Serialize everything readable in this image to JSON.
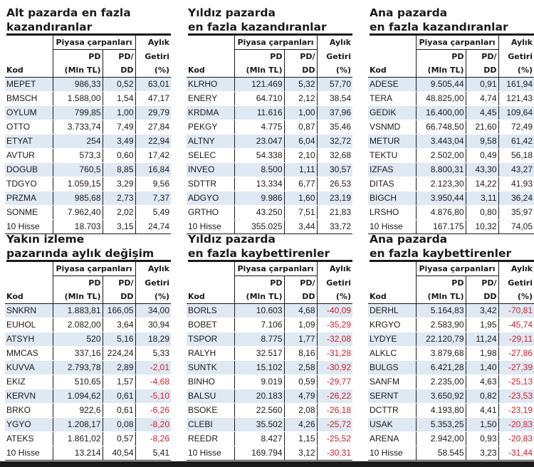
{
  "headers": {
    "group": "Piyasa çarpanları",
    "aylik": "Aylık",
    "pd": "PD",
    "pddd": "PD/",
    "getiri": "Getiri",
    "kod": "Kod",
    "mln": "(Mln TL)",
    "dd": "DD",
    "pct": "(%)"
  },
  "panels": [
    {
      "title1": "Alt pazarda en fazla",
      "title2": "kazandıranlar",
      "rows": [
        [
          "MEPET",
          "986,33",
          "0,52",
          "63,01"
        ],
        [
          "BMSCH",
          "1.588,00",
          "1,54",
          "47,17"
        ],
        [
          "OYLUM",
          "799,85",
          "1,00",
          "29,79"
        ],
        [
          "OTTO",
          "3.733,74",
          "7,49",
          "27,84"
        ],
        [
          "ETYAT",
          "254",
          "3,49",
          "22,94"
        ],
        [
          "AVTUR",
          "573,3",
          "0,60",
          "17,42"
        ],
        [
          "DOGUB",
          "760,5",
          "8,85",
          "16,84"
        ],
        [
          "TDGYO",
          "1.059,15",
          "3,29",
          "9,56"
        ],
        [
          "PRZMA",
          "985,68",
          "2,73",
          "7,37"
        ],
        [
          "SONME",
          "7.962,40",
          "2,02",
          "5,49"
        ]
      ],
      "total": [
        "10 Hisse",
        "18.703",
        "3,15",
        "24,74"
      ]
    },
    {
      "title1": "Yıldız pazarda",
      "title2": "en fazla kazandıranlar",
      "rows": [
        [
          "KLRHO",
          "121.469",
          "5,32",
          "57,70"
        ],
        [
          "ENERY",
          "64.710",
          "2,12",
          "38,54"
        ],
        [
          "KRDMA",
          "11.616",
          "1,00",
          "37,96"
        ],
        [
          "PEKGY",
          "4.775",
          "0,87",
          "35,46"
        ],
        [
          "ALTNY",
          "23.047",
          "6,04",
          "32,72"
        ],
        [
          "SELEC",
          "54.338",
          "2,10",
          "32,68"
        ],
        [
          "INVEO",
          "8.500",
          "1,11",
          "30,57"
        ],
        [
          "SDTTR",
          "13.334",
          "6,77",
          "26,53"
        ],
        [
          "ADGYO",
          "9.986",
          "1,60",
          "23,19"
        ],
        [
          "GRTHO",
          "43.250",
          "7,51",
          "21,83"
        ]
      ],
      "total": [
        "10 Hisse",
        "355.025",
        "3,44",
        "33,72"
      ]
    },
    {
      "title1": "Ana pazarda",
      "title2": "en fazla kazandıranlar",
      "rows": [
        [
          "ADESE",
          "9.505,44",
          "0,91",
          "161,94"
        ],
        [
          "TERA",
          "48.825,00",
          "4,74",
          "121,43"
        ],
        [
          "GEDIK",
          "16.400,00",
          "4,45",
          "109,64"
        ],
        [
          "VSNMD",
          "66.748,50",
          "21,60",
          "72,49"
        ],
        [
          "METUR",
          "3.443,04",
          "9,58",
          "61,42"
        ],
        [
          "TEKTU",
          "2.502,00",
          "0,49",
          "56,18"
        ],
        [
          "IZFAS",
          "8.800,31",
          "43,30",
          "43,27"
        ],
        [
          "DITAS",
          "2.123,30",
          "14,22",
          "41,93"
        ],
        [
          "BIGCH",
          "3.950,44",
          "3,11",
          "36,24"
        ],
        [
          "LRSHO",
          "4.876,80",
          "0,80",
          "35,97"
        ]
      ],
      "total": [
        "10 Hisse",
        "167.175",
        "10,32",
        "74,05"
      ]
    },
    {
      "title1": "Yakın izleme",
      "title2": "pazarında aylık değişim",
      "rows": [
        [
          "SNKRN",
          "1.883,81",
          "166,05",
          "34,00"
        ],
        [
          "EUHOL",
          "2.082,00",
          "3,64",
          "30,94"
        ],
        [
          "ATSYH",
          "520",
          "5,16",
          "18,29"
        ],
        [
          "MMCAS",
          "337,16",
          "224,24",
          "5,33"
        ],
        [
          "KUVVA",
          "2.793,78",
          "2,89",
          "-2,01"
        ],
        [
          "EKIZ",
          "510,65",
          "1,57",
          "-4,68"
        ],
        [
          "KERVN",
          "1.094,62",
          "0,61",
          "-5,10"
        ],
        [
          "BRKO",
          "922,6",
          "0,61",
          "-6,26"
        ],
        [
          "YGYO",
          "1.208,17",
          "0,08",
          "-8,20"
        ],
        [
          "ATEKS",
          "1.861,02",
          "0,57",
          "-8,26"
        ]
      ],
      "total": [
        "10 Hisse",
        "13.214",
        "40,54",
        "5,41"
      ]
    },
    {
      "title1": "Yıldız pazarda",
      "title2": "en fazla kaybettirenler",
      "rows": [
        [
          "BORLS",
          "10.603",
          "4,68",
          "-40,09"
        ],
        [
          "BOBET",
          "7.106",
          "1,09",
          "-35,29"
        ],
        [
          "TSPOR",
          "8.775",
          "1,77",
          "-32,08"
        ],
        [
          "RALYH",
          "32.517",
          "8,16",
          "-31,28"
        ],
        [
          "SUNTK",
          "15.102",
          "2,58",
          "-30,92"
        ],
        [
          "BINHO",
          "9.019",
          "0,59",
          "-29,77"
        ],
        [
          "BALSU",
          "20.183",
          "4,79",
          "-26,22"
        ],
        [
          "BSOKE",
          "22.560",
          "2,08",
          "-26,18"
        ],
        [
          "CLEBI",
          "35.502",
          "4,26",
          "-25,72"
        ],
        [
          "REEDR",
          "8.427",
          "1,15",
          "-25,52"
        ]
      ],
      "total": [
        "10 Hisse",
        "169.794",
        "3,12",
        "-30,31"
      ]
    },
    {
      "title1": "Ana pazarda",
      "title2": "en fazla kaybettirenler",
      "rows": [
        [
          "DERHL",
          "5.164,83",
          "3,42",
          "-70,81"
        ],
        [
          "KRGYO",
          "2.583,90",
          "1,95",
          "-45,74"
        ],
        [
          "LYDYE",
          "22.120,79",
          "11,24",
          "-29,11"
        ],
        [
          "ALKLC",
          "3.879,68",
          "1,98",
          "-27,86"
        ],
        [
          "BULGS",
          "6.421,28",
          "1,40",
          "-27,39"
        ],
        [
          "SANFM",
          "2.235,00",
          "4,63",
          "-25,13"
        ],
        [
          "SERNT",
          "3.650,92",
          "0,82",
          "-23,53"
        ],
        [
          "DCTTR",
          "4.193,80",
          "4,41",
          "-23,19"
        ],
        [
          "USAK",
          "5.353,25",
          "1,50",
          "-20,83"
        ],
        [
          "ARENA",
          "2.942,00",
          "0,93",
          "-20,83"
        ]
      ],
      "total": [
        "10 Hisse",
        "58.545",
        "3,23",
        "-31,44"
      ]
    }
  ]
}
